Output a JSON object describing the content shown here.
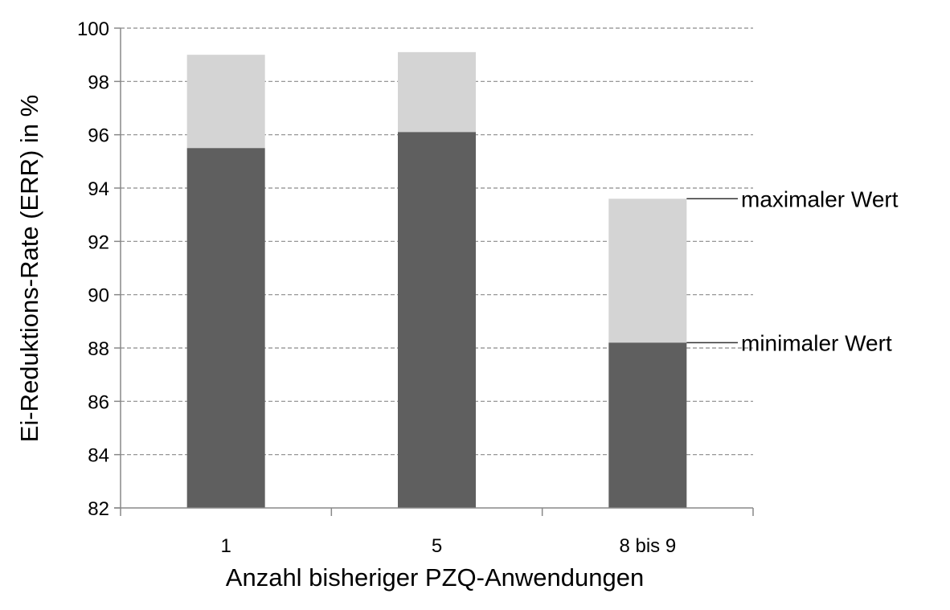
{
  "chart_data": {
    "type": "bar",
    "stacked": true,
    "title": "",
    "xlabel": "Anzahl bisheriger PZQ-Anwendungen",
    "ylabel": "Ei-Reduktions-Rate (ERR) in %",
    "ylim": [
      82,
      100
    ],
    "yticks": [
      82,
      84,
      86,
      88,
      90,
      92,
      94,
      96,
      98,
      100
    ],
    "grid": true,
    "categories": [
      "1",
      "5",
      "8 bis 9"
    ],
    "series": [
      {
        "name": "minimaler Wert",
        "values": [
          95.5,
          96.1,
          88.2
        ],
        "color": "#5f5f5f"
      },
      {
        "name": "maximaler Wert",
        "values": [
          99.0,
          99.1,
          93.6
        ],
        "color": "#d4d4d4"
      }
    ],
    "annotations": [
      {
        "text": "maximaler Wert",
        "target": "8 bis 9",
        "value": 93.6
      },
      {
        "text": "minimaler Wert",
        "target": "8 bis 9",
        "value": 88.2
      }
    ],
    "legend_position": "none (inline annotations on right)"
  }
}
